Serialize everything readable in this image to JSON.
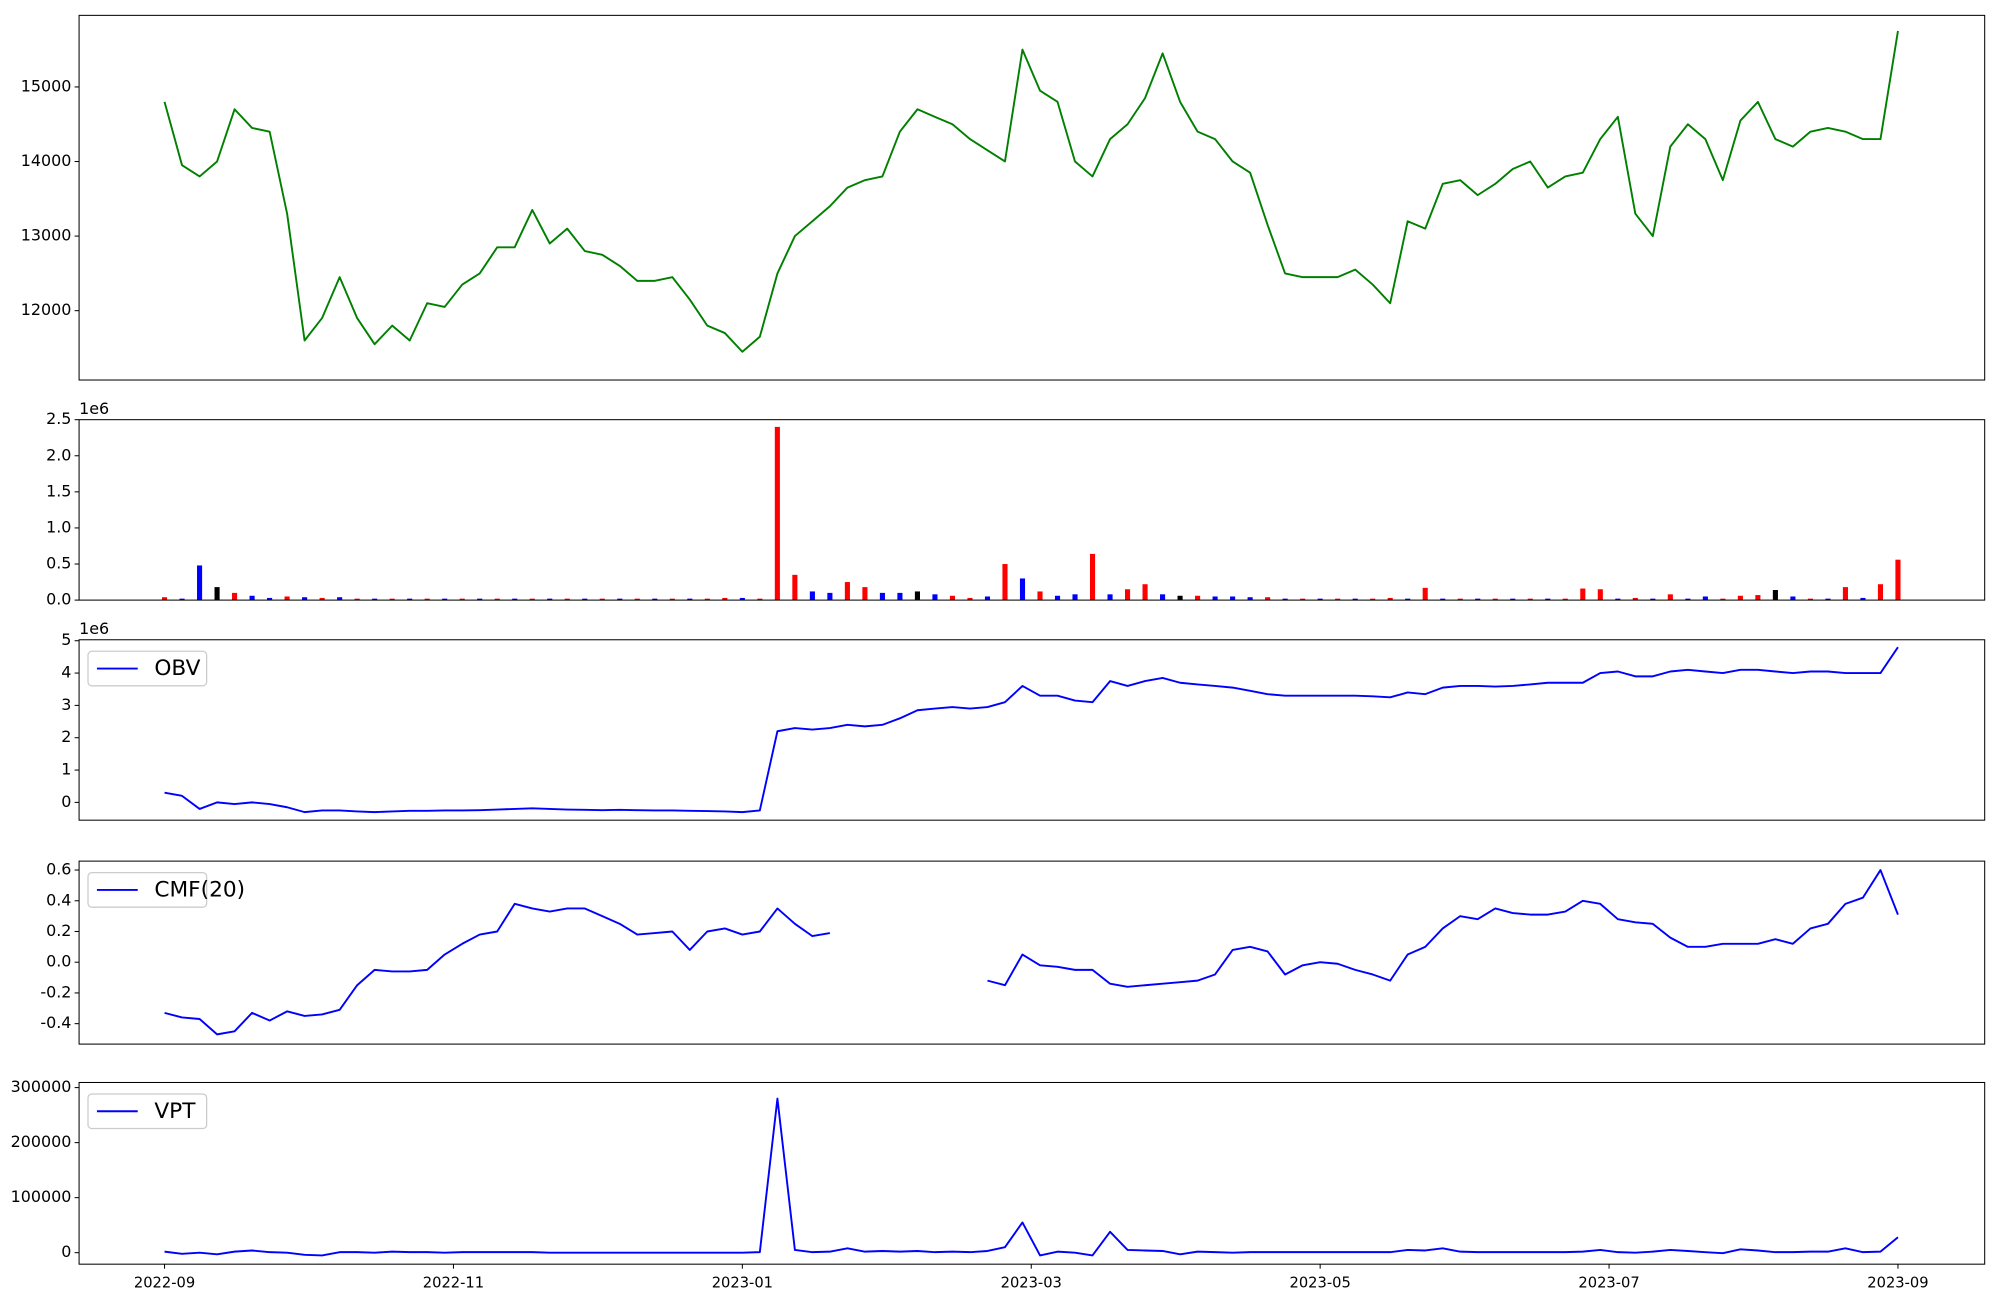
{
  "chart_data": [
    {
      "type": "line",
      "series": [
        {
          "color": "green",
          "values": [
            14800,
            13950,
            13800,
            14000,
            14700,
            14450,
            14400,
            13300,
            11600,
            11900,
            12450,
            11900,
            11550,
            11800,
            11600,
            12100,
            12050,
            12350,
            12500,
            12850,
            12850,
            13350,
            12900,
            13100,
            12800,
            12750,
            12600,
            12400,
            12400,
            12450,
            12150,
            11800,
            11700,
            11450,
            11650,
            12500,
            13000,
            13200,
            13400,
            13650,
            13750,
            13800,
            14400,
            14700,
            14600,
            14500,
            14300,
            14150,
            14000,
            15500,
            14950,
            14800,
            14000,
            13800,
            14300,
            14500,
            14850,
            15450,
            14800,
            14400,
            14300,
            14000,
            13850,
            13150,
            12500,
            12450,
            12450,
            12450,
            12550,
            12350,
            12100,
            13200,
            13100,
            13700,
            13750,
            13550,
            13700,
            13900,
            14000,
            13650,
            13800,
            13850,
            14300,
            14600,
            13300,
            13000,
            14200,
            14500,
            14300,
            13750,
            14550,
            14800,
            14300,
            14200,
            14400,
            14450,
            14400,
            14300,
            14300,
            15750
          ]
        }
      ],
      "ylim": [
        11070,
        15960
      ],
      "yticks": [
        12000,
        13000,
        14000,
        15000
      ]
    },
    {
      "type": "bar",
      "y_offset_label": "1e6",
      "values": [
        40000,
        20000,
        480000,
        180000,
        100000,
        60000,
        30000,
        50000,
        40000,
        30000,
        40000,
        20000,
        20000,
        20000,
        20000,
        20000,
        20000,
        20000,
        20000,
        20000,
        20000,
        20000,
        20000,
        20000,
        20000,
        20000,
        20000,
        20000,
        20000,
        20000,
        20000,
        20000,
        30000,
        30000,
        20000,
        2400000,
        350000,
        120000,
        100000,
        250000,
        180000,
        100000,
        100000,
        120000,
        80000,
        60000,
        30000,
        50000,
        500000,
        300000,
        120000,
        60000,
        80000,
        640000,
        80000,
        150000,
        220000,
        80000,
        60000,
        60000,
        50000,
        50000,
        40000,
        40000,
        20000,
        20000,
        20000,
        20000,
        20000,
        20000,
        30000,
        20000,
        170000,
        20000,
        20000,
        20000,
        20000,
        20000,
        20000,
        20000,
        20000,
        160000,
        150000,
        20000,
        30000,
        20000,
        80000,
        20000,
        50000,
        20000,
        60000,
        70000,
        140000,
        50000,
        20000,
        20000,
        180000,
        30000,
        220000,
        560000
      ],
      "colors": [
        "red",
        "blue",
        "blue",
        "black",
        "red",
        "blue",
        "blue",
        "red",
        "blue",
        "red",
        "blue",
        "red",
        "blue",
        "red",
        "blue",
        "red",
        "blue",
        "red",
        "blue",
        "red",
        "blue",
        "red",
        "blue",
        "red",
        "blue",
        "red",
        "blue",
        "red",
        "blue",
        "red",
        "blue",
        "red",
        "red",
        "blue",
        "red",
        "red",
        "red",
        "blue",
        "blue",
        "red",
        "red",
        "blue",
        "blue",
        "black",
        "blue",
        "red",
        "red",
        "blue",
        "red",
        "blue",
        "red",
        "blue",
        "blue",
        "red",
        "blue",
        "red",
        "red",
        "blue",
        "black",
        "red",
        "blue",
        "blue",
        "blue",
        "red",
        "blue",
        "red",
        "blue",
        "red",
        "blue",
        "red",
        "red",
        "blue",
        "red",
        "blue",
        "red",
        "blue",
        "red",
        "blue",
        "red",
        "blue",
        "red",
        "red",
        "red",
        "blue",
        "red",
        "blue",
        "red",
        "blue",
        "blue",
        "red",
        "red",
        "red",
        "black",
        "blue",
        "red",
        "blue",
        "red",
        "blue",
        "red",
        "red"
      ],
      "ylim": [
        0,
        2500000
      ],
      "yticks": [
        {
          "value": 0,
          "label": "0.0"
        },
        {
          "value": 500000,
          "label": "0.5"
        },
        {
          "value": 1000000,
          "label": "1.0"
        },
        {
          "value": 1500000,
          "label": "1.5"
        },
        {
          "value": 2000000,
          "label": "2.0"
        },
        {
          "value": 2500000,
          "label": "2.5"
        }
      ]
    },
    {
      "type": "line",
      "y_offset_label": "1e6",
      "series": [
        {
          "name": "OBV",
          "color": "blue",
          "values": [
            300000,
            200000,
            -200000,
            0,
            -50000,
            0,
            -50000,
            -150000,
            -300000,
            -250000,
            -250000,
            -280000,
            -300000,
            -280000,
            -260000,
            -260000,
            -250000,
            -250000,
            -240000,
            -220000,
            -200000,
            -180000,
            -200000,
            -220000,
            -230000,
            -240000,
            -230000,
            -240000,
            -250000,
            -250000,
            -260000,
            -270000,
            -280000,
            -300000,
            -250000,
            2200000,
            2300000,
            2250000,
            2300000,
            2400000,
            2350000,
            2400000,
            2600000,
            2850000,
            2900000,
            2950000,
            2900000,
            2950000,
            3100000,
            3600000,
            3300000,
            3300000,
            3150000,
            3100000,
            3750000,
            3600000,
            3750000,
            3850000,
            3700000,
            3650000,
            3600000,
            3550000,
            3450000,
            3350000,
            3300000,
            3300000,
            3300000,
            3300000,
            3300000,
            3280000,
            3250000,
            3400000,
            3350000,
            3550000,
            3600000,
            3600000,
            3580000,
            3600000,
            3650000,
            3700000,
            3700000,
            3700000,
            4000000,
            4050000,
            3900000,
            3900000,
            4050000,
            4100000,
            4050000,
            4000000,
            4100000,
            4100000,
            4050000,
            4000000,
            4050000,
            4050000,
            4000000,
            4000000,
            4000000,
            4800000
          ]
        }
      ],
      "ylim": [
        -550000,
        5030000
      ],
      "yticks": [
        {
          "value": 0,
          "label": "0"
        },
        {
          "value": 1000000,
          "label": "1"
        },
        {
          "value": 2000000,
          "label": "2"
        },
        {
          "value": 3000000,
          "label": "3"
        },
        {
          "value": 4000000,
          "label": "4"
        },
        {
          "value": 5000000,
          "label": "5"
        }
      ],
      "legend": "upper left"
    },
    {
      "type": "line",
      "series": [
        {
          "name": "CMF(20)",
          "color": "blue",
          "values": [
            -0.33,
            -0.36,
            -0.37,
            -0.47,
            -0.45,
            -0.33,
            -0.38,
            -0.32,
            -0.35,
            -0.34,
            -0.31,
            -0.15,
            -0.05,
            -0.06,
            -0.06,
            -0.05,
            0.05,
            0.12,
            0.18,
            0.2,
            0.38,
            0.35,
            0.33,
            0.35,
            0.35,
            0.3,
            0.25,
            0.18,
            0.19,
            0.2,
            0.08,
            0.2,
            0.22,
            0.18,
            0.2,
            0.35,
            0.25,
            0.17,
            0.19,
            null,
            null,
            null,
            null,
            null,
            null,
            null,
            null,
            -0.12,
            -0.15,
            0.05,
            -0.02,
            -0.03,
            -0.05,
            -0.05,
            -0.14,
            -0.16,
            -0.15,
            -0.14,
            -0.13,
            -0.12,
            -0.08,
            0.08,
            0.1,
            0.07,
            -0.08,
            -0.02,
            0.0,
            -0.01,
            -0.05,
            -0.08,
            -0.12,
            0.05,
            0.1,
            0.22,
            0.3,
            0.28,
            0.35,
            0.32,
            0.31,
            0.31,
            0.33,
            0.4,
            0.38,
            0.28,
            0.26,
            0.25,
            0.16,
            0.1,
            0.1,
            0.12,
            0.12,
            0.12,
            0.15,
            0.12,
            0.22,
            0.25,
            0.38,
            0.42,
            0.6,
            0.31
          ]
        }
      ],
      "ylim": [
        -0.533,
        0.658
      ],
      "yticks": [
        {
          "value": -0.4,
          "label": "-0.4"
        },
        {
          "value": -0.2,
          "label": "-0.2"
        },
        {
          "value": 0,
          "label": "0.0"
        },
        {
          "value": 0.2,
          "label": "0.2"
        },
        {
          "value": 0.4,
          "label": "0.4"
        },
        {
          "value": 0.6,
          "label": "0.6"
        }
      ],
      "legend": "upper left"
    },
    {
      "type": "line",
      "series": [
        {
          "name": "VPT",
          "color": "blue",
          "values": [
            2000,
            -2000,
            0,
            -3000,
            2000,
            4000,
            1000,
            0,
            -4000,
            -5000,
            1000,
            1000,
            0,
            2000,
            1000,
            1000,
            0,
            1000,
            1000,
            1000,
            1000,
            1000,
            0,
            0,
            0,
            0,
            0,
            0,
            0,
            0,
            0,
            0,
            0,
            0,
            1000,
            280000,
            5000,
            1000,
            2000,
            8000,
            2000,
            3000,
            2000,
            3000,
            1000,
            2000,
            1000,
            3000,
            10000,
            55000,
            -5000,
            2000,
            0,
            -5000,
            38000,
            5000,
            4000,
            3000,
            -3000,
            2000,
            1000,
            0,
            1000,
            1000,
            1000,
            1000,
            1000,
            1000,
            1000,
            1000,
            1000,
            5000,
            4000,
            8000,
            2000,
            1000,
            1000,
            1000,
            1000,
            1000,
            1000,
            2000,
            5000,
            1000,
            0,
            2000,
            5000,
            3000,
            1000,
            -1000,
            6000,
            4000,
            1000,
            1000,
            2000,
            2000,
            8000,
            1000,
            2000,
            28000
          ]
        }
      ],
      "ylim": [
        -20900,
        309300
      ],
      "yticks": [
        0,
        100000,
        200000,
        300000
      ],
      "xticks": [
        "2022-09",
        "2022-11",
        "2023-01",
        "2023-03",
        "2023-05",
        "2023-07",
        "2023-09"
      ],
      "legend": "upper left"
    }
  ]
}
